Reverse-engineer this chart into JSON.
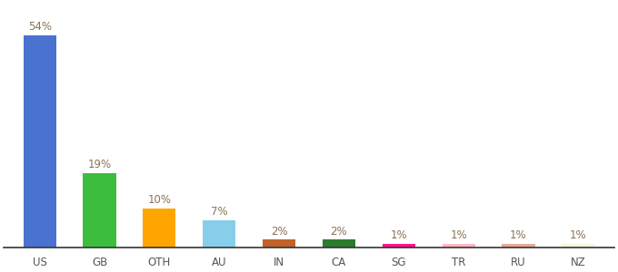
{
  "categories": [
    "US",
    "GB",
    "OTH",
    "AU",
    "IN",
    "CA",
    "SG",
    "TR",
    "RU",
    "NZ"
  ],
  "values": [
    54,
    19,
    10,
    7,
    2,
    2,
    1,
    1,
    1,
    1
  ],
  "labels": [
    "54%",
    "19%",
    "10%",
    "7%",
    "2%",
    "2%",
    "1%",
    "1%",
    "1%",
    "1%"
  ],
  "bar_colors": [
    "#4A72D1",
    "#3DBD3D",
    "#FFA500",
    "#87CEEB",
    "#C0622A",
    "#2D7A2D",
    "#FF1493",
    "#FFB6C1",
    "#E8A898",
    "#F5F5DC"
  ],
  "background_color": "#ffffff",
  "label_fontsize": 8.5,
  "tick_fontsize": 8.5,
  "label_color": "#8B7355",
  "ylim": [
    0,
    62
  ],
  "bar_width": 0.55
}
